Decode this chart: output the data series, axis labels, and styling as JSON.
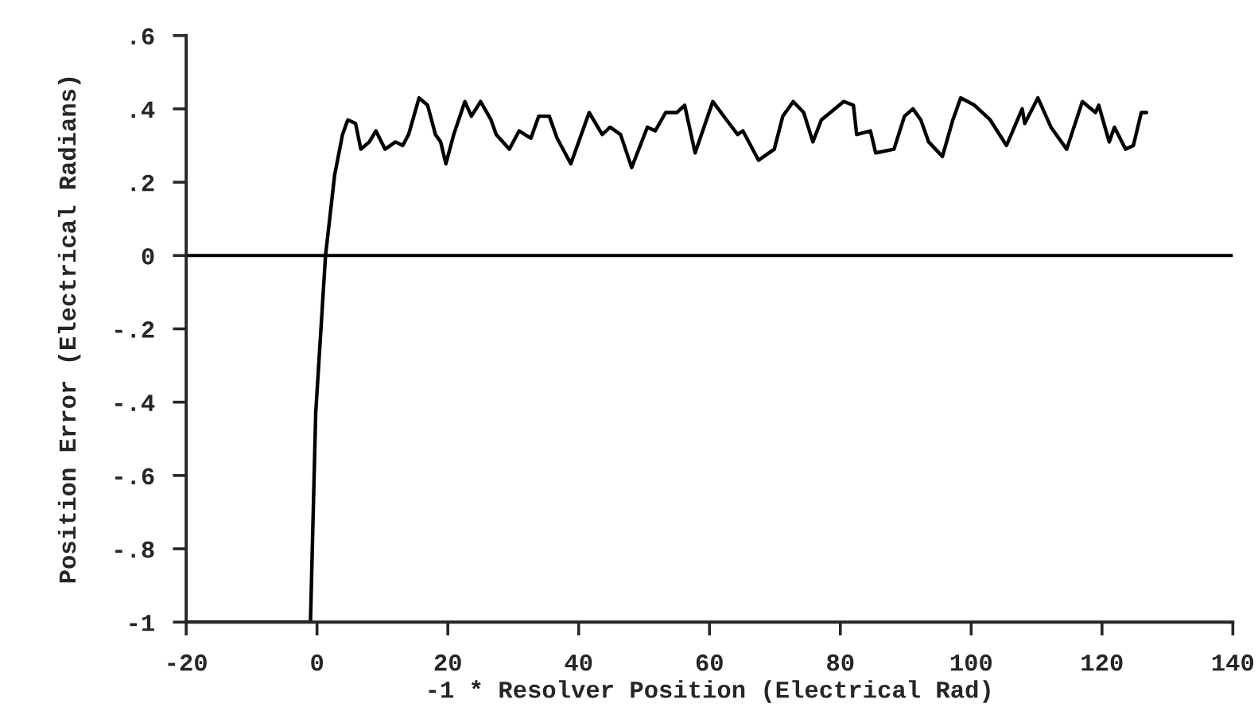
{
  "chart_data": {
    "type": "line",
    "xlabel": "-1 * Resolver Position (Electrical Rad)",
    "ylabel": "Position Error (Electrical Radians)",
    "xlim": [
      -20,
      140
    ],
    "xticks": [
      -20,
      0,
      20,
      40,
      60,
      80,
      100,
      120,
      140
    ],
    "ylim": [
      -1,
      0.6
    ],
    "yticks": [
      {
        "value": 0.6,
        "label": ".6"
      },
      {
        "value": 0.4,
        "label": ".4"
      },
      {
        "value": 0.2,
        "label": ".2"
      },
      0,
      {
        "value": -0.2,
        "label": "-.2"
      },
      {
        "value": -0.4,
        "label": "-.4"
      },
      {
        "value": -0.6,
        "label": "-.6"
      },
      {
        "value": -0.8,
        "label": "-.8"
      },
      -1
    ],
    "grid": false,
    "legend": false,
    "marker": "none",
    "line_style": "solid",
    "ref_lines": [
      {
        "axis": "y",
        "value": 0,
        "color": "#000000"
      }
    ],
    "series": [
      {
        "color": "#000000",
        "x": [
          -20,
          -1,
          -0.2,
          1.3,
          2.7,
          3.9,
          4.7,
          5.9,
          6.7,
          8.0,
          9.0,
          10.4,
          12.0,
          13.1,
          14.0,
          15.6,
          16.9,
          18.1,
          18.9,
          19.7,
          20.9,
          22.6,
          23.6,
          25.0,
          26.6,
          27.4,
          29.4,
          30.9,
          32.7,
          33.9,
          35.5,
          36.7,
          38.8,
          41.6,
          43.6,
          44.8,
          46.4,
          48.1,
          50.5,
          51.7,
          53.3,
          55.0,
          56.2,
          57.8,
          60.5,
          62.6,
          64.3,
          65.1,
          67.5,
          69.9,
          71.2,
          72.8,
          74.4,
          75.8,
          77.1,
          80.5,
          82.0,
          82.5,
          84.6,
          85.4,
          88.2,
          89.8,
          91.1,
          92.3,
          93.5,
          95.6,
          97.2,
          98.4,
          100.5,
          102.9,
          105.4,
          107.8,
          108.2,
          110.2,
          112.2,
          114.6,
          117.0,
          119.0,
          119.5,
          121.1,
          121.9,
          123.6,
          124.8,
          126.0,
          126.8
        ],
        "values": [
          -1,
          -1,
          -0.43,
          0,
          0.22,
          0.33,
          0.37,
          0.36,
          0.29,
          0.31,
          0.34,
          0.29,
          0.31,
          0.3,
          0.33,
          0.43,
          0.41,
          0.33,
          0.31,
          0.25,
          0.33,
          0.42,
          0.38,
          0.42,
          0.37,
          0.33,
          0.29,
          0.34,
          0.32,
          0.38,
          0.38,
          0.32,
          0.25,
          0.39,
          0.33,
          0.35,
          0.33,
          0.24,
          0.35,
          0.34,
          0.39,
          0.39,
          0.41,
          0.28,
          0.42,
          0.37,
          0.33,
          0.34,
          0.26,
          0.29,
          0.38,
          0.42,
          0.39,
          0.31,
          0.37,
          0.42,
          0.41,
          0.33,
          0.34,
          0.28,
          0.29,
          0.38,
          0.4,
          0.37,
          0.31,
          0.27,
          0.37,
          0.43,
          0.41,
          0.37,
          0.3,
          0.4,
          0.36,
          0.43,
          0.35,
          0.29,
          0.42,
          0.39,
          0.41,
          0.31,
          0.35,
          0.29,
          0.3,
          0.39,
          0.39
        ]
      }
    ]
  }
}
